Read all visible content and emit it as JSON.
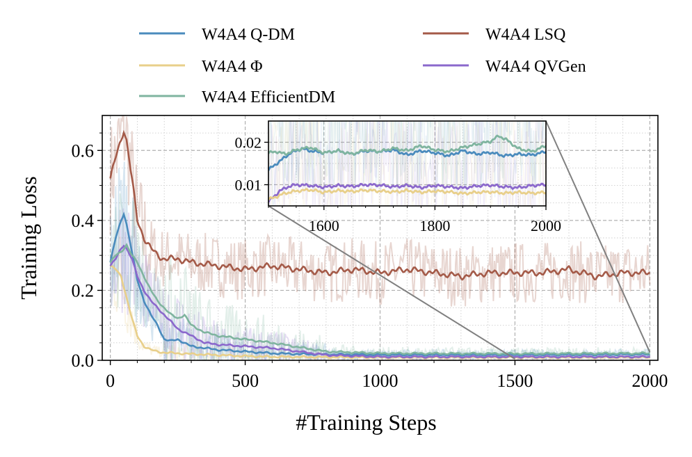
{
  "chart_data": {
    "type": "line",
    "xlabel": "#Training Steps",
    "ylabel": "Training Loss",
    "xlim": [
      -30,
      2030
    ],
    "ylim": [
      0.0,
      0.7
    ],
    "x_ticks": [
      0,
      500,
      1000,
      1500,
      2000
    ],
    "x_tick_labels": [
      "0",
      "500",
      "1000",
      "1500",
      "2000"
    ],
    "y_ticks": [
      0.0,
      0.2,
      0.4,
      0.6
    ],
    "y_tick_labels": [
      "0.0",
      "0.2",
      "0.4",
      "0.6"
    ],
    "grid": true,
    "legend_position": "top",
    "legend": [
      {
        "name": "W4A4 Q-DM",
        "color": "#4a8bbd"
      },
      {
        "name": "W4A4 LSQ",
        "color": "#a45a48"
      },
      {
        "name": "W4A4 Φ",
        "color": "#e8cf8a"
      },
      {
        "name": "W4A4 QVGen",
        "color": "#8b68cc"
      },
      {
        "name": "W4A4 EfficientDM",
        "color": "#7fb49f"
      }
    ],
    "series": [
      {
        "name": "W4A4 Q-DM",
        "color": "#4a8bbd",
        "x": [
          0,
          20,
          40,
          50,
          60,
          80,
          100,
          125,
          150,
          175,
          200,
          225,
          250,
          275,
          300,
          350,
          400,
          500,
          600,
          700,
          800,
          1000,
          1500,
          2000
        ],
        "y": [
          0.28,
          0.35,
          0.4,
          0.42,
          0.39,
          0.31,
          0.23,
          0.17,
          0.13,
          0.1,
          0.06,
          0.055,
          0.06,
          0.05,
          0.04,
          0.035,
          0.03,
          0.025,
          0.02,
          0.018,
          0.017,
          0.016,
          0.016,
          0.017
        ]
      },
      {
        "name": "W4A4 LSQ",
        "color": "#a45a48",
        "x": [
          0,
          20,
          40,
          50,
          60,
          80,
          100,
          125,
          150,
          175,
          200,
          250,
          300,
          400,
          500,
          600,
          700,
          800,
          900,
          1000,
          1100,
          1200,
          1300,
          1400,
          1500,
          1600,
          1700,
          1800,
          1900,
          2000
        ],
        "y": [
          0.52,
          0.58,
          0.63,
          0.66,
          0.63,
          0.52,
          0.4,
          0.35,
          0.32,
          0.3,
          0.29,
          0.29,
          0.28,
          0.27,
          0.26,
          0.27,
          0.26,
          0.25,
          0.26,
          0.25,
          0.26,
          0.25,
          0.24,
          0.25,
          0.25,
          0.25,
          0.26,
          0.24,
          0.25,
          0.25
        ]
      },
      {
        "name": "W4A4 Φ",
        "color": "#e8cf8a",
        "x": [
          0,
          20,
          40,
          60,
          80,
          100,
          125,
          150,
          175,
          200,
          250,
          300,
          400,
          500,
          600,
          800,
          1000,
          1500,
          2000
        ],
        "y": [
          0.27,
          0.26,
          0.24,
          0.18,
          0.12,
          0.07,
          0.04,
          0.03,
          0.025,
          0.022,
          0.02,
          0.018,
          0.015,
          0.012,
          0.01,
          0.009,
          0.008,
          0.008,
          0.008
        ]
      },
      {
        "name": "W4A4 QVGen",
        "color": "#8b68cc",
        "x": [
          0,
          20,
          40,
          50,
          60,
          80,
          100,
          125,
          150,
          175,
          200,
          250,
          300,
          350,
          400,
          500,
          600,
          800,
          1000,
          1500,
          2000
        ],
        "y": [
          0.27,
          0.29,
          0.32,
          0.33,
          0.32,
          0.29,
          0.24,
          0.2,
          0.17,
          0.15,
          0.13,
          0.09,
          0.07,
          0.05,
          0.045,
          0.04,
          0.035,
          0.015,
          0.01,
          0.01,
          0.01
        ]
      },
      {
        "name": "W4A4 EfficientDM",
        "color": "#7fb49f",
        "x": [
          0,
          20,
          40,
          60,
          80,
          100,
          125,
          150,
          175,
          200,
          225,
          250,
          275,
          300,
          350,
          400,
          500,
          600,
          800,
          1000,
          1500,
          2000
        ],
        "y": [
          0.28,
          0.3,
          0.31,
          0.33,
          0.3,
          0.28,
          0.24,
          0.2,
          0.17,
          0.15,
          0.13,
          0.12,
          0.13,
          0.1,
          0.08,
          0.07,
          0.06,
          0.05,
          0.025,
          0.02,
          0.019,
          0.02
        ]
      }
    ],
    "inset": {
      "xlim": [
        1500,
        2000
      ],
      "ylim": [
        0.005,
        0.025
      ],
      "x_ticks": [
        1600,
        1800,
        2000
      ],
      "x_tick_labels": [
        "1600",
        "1800",
        "2000"
      ],
      "y_ticks": [
        0.01,
        0.02
      ],
      "y_tick_labels": [
        "0.01",
        "0.02"
      ],
      "series": [
        {
          "name": "W4A4 Q-DM",
          "color": "#4a8bbd",
          "x": [
            1500,
            1510,
            1520,
            1530,
            1540,
            1550,
            1560,
            1575,
            1600,
            1625,
            1650,
            1675,
            1700,
            1725,
            1750,
            1775,
            1800,
            1825,
            1850,
            1875,
            1900,
            1925,
            1950,
            1975,
            2000
          ],
          "y": [
            0.0135,
            0.0145,
            0.0155,
            0.0165,
            0.0175,
            0.018,
            0.0185,
            0.018,
            0.0175,
            0.018,
            0.0172,
            0.018,
            0.0178,
            0.0182,
            0.017,
            0.018,
            0.0175,
            0.0168,
            0.018,
            0.0172,
            0.0176,
            0.0168,
            0.0172,
            0.017,
            0.0178
          ]
        },
        {
          "name": "W4A4 EfficientDM",
          "color": "#7fb49f",
          "x": [
            1500,
            1515,
            1530,
            1550,
            1575,
            1600,
            1625,
            1650,
            1675,
            1700,
            1725,
            1750,
            1775,
            1800,
            1825,
            1850,
            1875,
            1900,
            1915,
            1930,
            1950,
            1975,
            2000
          ],
          "y": [
            0.0175,
            0.0178,
            0.0172,
            0.0182,
            0.0188,
            0.0175,
            0.018,
            0.0172,
            0.0182,
            0.0178,
            0.0186,
            0.018,
            0.0192,
            0.0182,
            0.0178,
            0.0188,
            0.0195,
            0.0202,
            0.0215,
            0.0205,
            0.0185,
            0.0178,
            0.0192
          ]
        },
        {
          "name": "W4A4 QVGen",
          "color": "#8b68cc",
          "x": [
            1500,
            1510,
            1520,
            1535,
            1550,
            1575,
            1600,
            1625,
            1650,
            1675,
            1700,
            1725,
            1750,
            1775,
            1800,
            1825,
            1850,
            1875,
            1900,
            1925,
            1950,
            1975,
            2000
          ],
          "y": [
            0.006,
            0.0072,
            0.0085,
            0.0095,
            0.01,
            0.0098,
            0.0094,
            0.0098,
            0.0096,
            0.01,
            0.0099,
            0.0095,
            0.0098,
            0.0093,
            0.0098,
            0.0095,
            0.0092,
            0.0097,
            0.0099,
            0.0095,
            0.0093,
            0.0098,
            0.01
          ]
        },
        {
          "name": "W4A4 Φ",
          "color": "#e8cf8a",
          "x": [
            1500,
            1515,
            1530,
            1550,
            1575,
            1600,
            1625,
            1650,
            1675,
            1700,
            1725,
            1750,
            1775,
            1800,
            1825,
            1850,
            1875,
            1900,
            1925,
            1950,
            1975,
            2000
          ],
          "y": [
            0.0065,
            0.0072,
            0.008,
            0.0085,
            0.0088,
            0.0082,
            0.0086,
            0.0084,
            0.0087,
            0.0085,
            0.0083,
            0.0086,
            0.0082,
            0.0085,
            0.0083,
            0.0079,
            0.0082,
            0.0083,
            0.008,
            0.0082,
            0.008,
            0.0082
          ]
        }
      ]
    }
  }
}
